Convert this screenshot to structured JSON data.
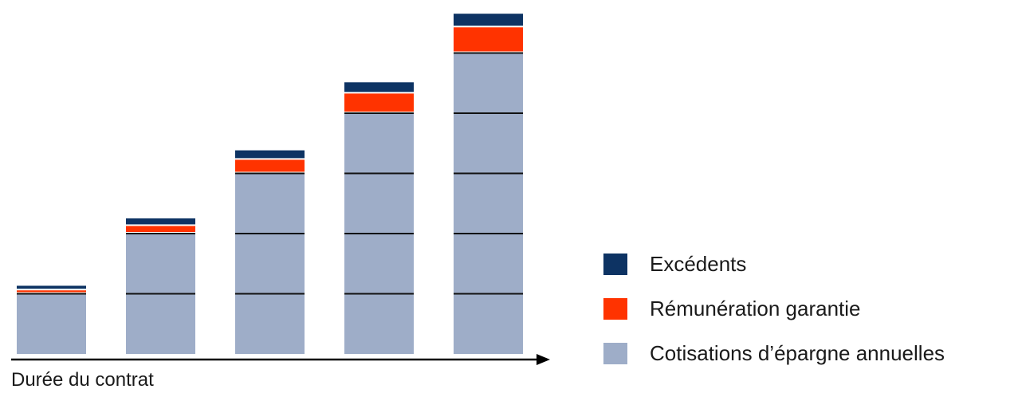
{
  "chart_data": {
    "type": "bar",
    "stacked": true,
    "categories": [
      "",
      "",
      "",
      "",
      ""
    ],
    "series": [
      {
        "name": "Cotisations d’épargne annuelles",
        "color": "#9eadc8",
        "values": [
          1,
          2,
          3,
          4,
          5
        ]
      },
      {
        "name": "Rémunération garantie",
        "color": "#ff3300",
        "values": [
          0.03,
          0.1,
          0.2,
          0.3,
          0.4
        ]
      },
      {
        "name": "Excédents",
        "color": "#0d3363",
        "values": [
          0.05,
          0.1,
          0.13,
          0.16,
          0.2
        ]
      }
    ],
    "xlabel": "Durée du contrat",
    "ylabel": "",
    "ylim": [
      0,
      5.7
    ],
    "grid": false,
    "legend": "right",
    "legend_order": [
      "Excédents",
      "Rémunération garantie",
      "Cotisations d’épargne annuelles"
    ]
  }
}
